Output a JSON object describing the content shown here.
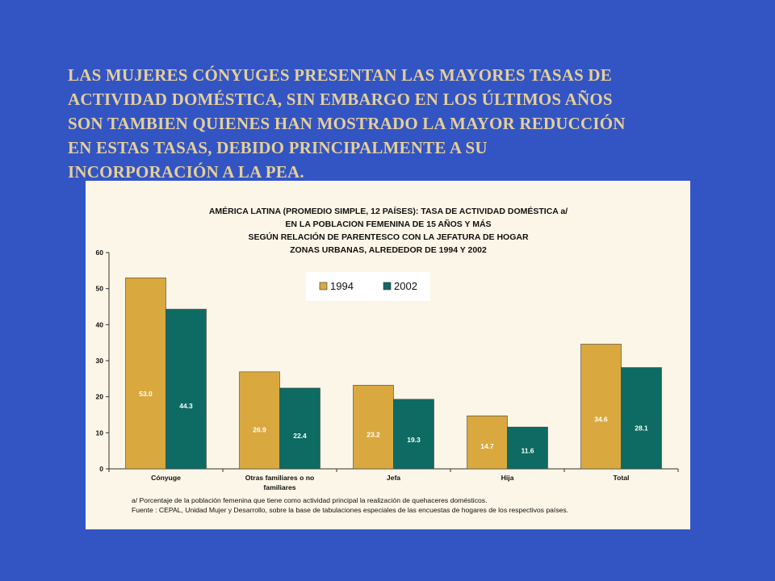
{
  "slide": {
    "heading_lines": [
      "LAS MUJERES CÓNYUGES PRESENTAN LAS MAYORES TASAS DE",
      "ACTIVIDAD DOMÉSTICA, SIN EMBARGO EN LOS ÚLTIMOS AÑOS",
      "SON TAMBIEN QUIENES HAN MOSTRADO LA MAYOR REDUCCIÓN",
      "EN ESTAS TASAS, DEBIDO PRINCIPALMENTE A SU",
      "INCORPORACIÓN A LA PEA."
    ]
  },
  "colors": {
    "background": "#3355c4",
    "heading": "#e6cf97",
    "panel": "#fbf6e7",
    "series_1994": "#d9a93f",
    "series_2002": "#0d6b63"
  },
  "chart_data": {
    "type": "bar",
    "title_lines": [
      "AMÉRICA LATINA (PROMEDIO SIMPLE,  12 PAÍSES):  TASA DE ACTIVIDAD DOMÉSTICA a/",
      "EN LA POBLACION FEMENINA DE 15 AÑOS Y MÁS",
      "SEGÚN RELACIÓN DE PARENTESCO CON LA JEFATURA DE HOGAR",
      "ZONAS URBANAS,  ALREDEDOR DE 1994 Y 2002"
    ],
    "categories": [
      [
        "Cónyuge"
      ],
      [
        "Otras familiares o no",
        "familiares"
      ],
      [
        "Jefa"
      ],
      [
        "Hija"
      ],
      [
        "Total"
      ]
    ],
    "series": [
      {
        "name": "1994",
        "values": [
          53.0,
          26.9,
          23.2,
          14.7,
          34.6
        ],
        "labels": [
          "53.0",
          "26.9",
          "23.2",
          "14.7",
          "34.6"
        ]
      },
      {
        "name": "2002",
        "values": [
          44.3,
          22.4,
          19.3,
          11.6,
          28.1
        ],
        "labels": [
          "44.3",
          "22.4",
          "19.3",
          "11.6",
          "28.1"
        ]
      }
    ],
    "y_ticks": [
      "0",
      "10",
      "20",
      "30",
      "40",
      "50",
      "60"
    ],
    "ylim": [
      0,
      60
    ],
    "legend_position": "top-center",
    "grid": false,
    "footnotes": [
      "a/ Porcentaje de la población femenina que tiene como actividad principal la realización de quehaceres domésticos.",
      "Fuente : CEPAL, Unidad Mujer y Desarrollo, sobre la base de tabulaciones especiales de las encuestas de hogares de los respectivos países."
    ]
  }
}
